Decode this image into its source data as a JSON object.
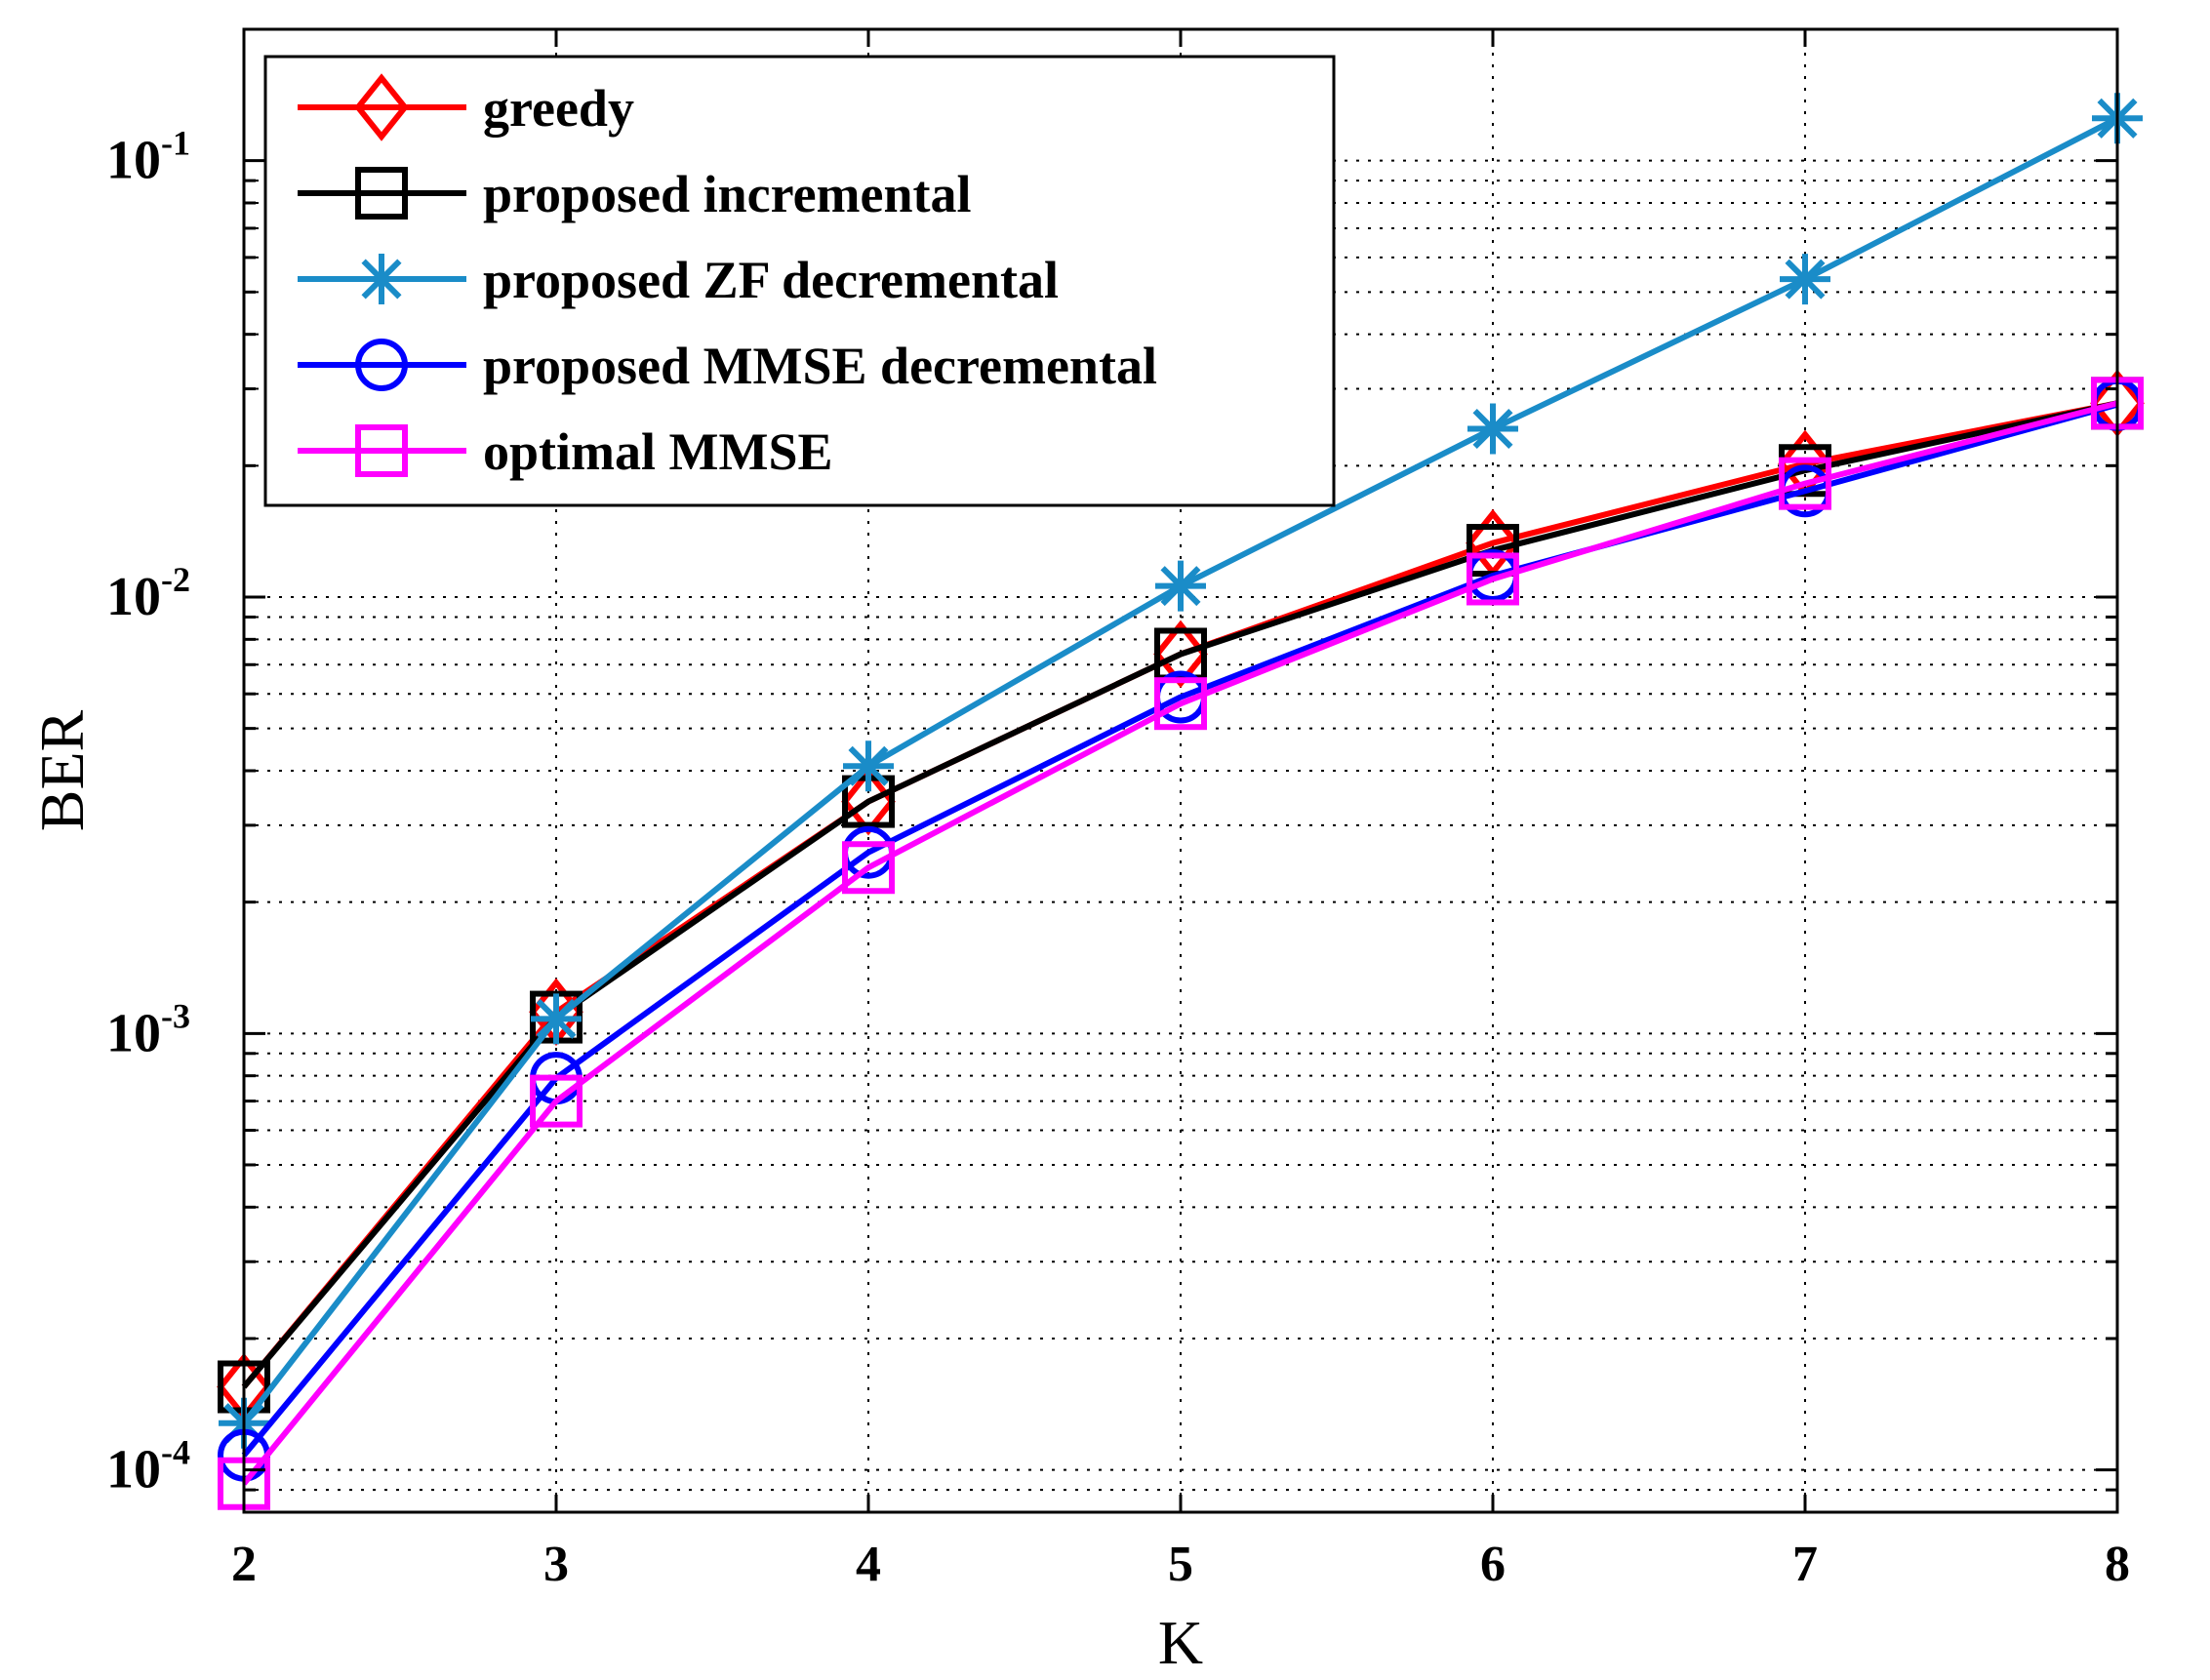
{
  "chart_data": {
    "type": "line",
    "xlabel": "K",
    "ylabel": "BER",
    "xlim": [
      2,
      8
    ],
    "ylim": [
      8e-05,
      0.2
    ],
    "yscale": "log",
    "grid": true,
    "legend_position": "top-left",
    "x": [
      2,
      3,
      4,
      5,
      6,
      7,
      8
    ],
    "x_tick_labels": [
      "2",
      "3",
      "4",
      "5",
      "6",
      "7",
      "8"
    ],
    "y_ticks": [
      {
        "value": 0.1,
        "base": "10",
        "exp": "-1"
      },
      {
        "value": 0.01,
        "base": "10",
        "exp": "-2"
      },
      {
        "value": 0.001,
        "base": "10",
        "exp": "-3"
      },
      {
        "value": 0.0001,
        "base": "10",
        "exp": "-4"
      }
    ],
    "series": [
      {
        "name": "greedy",
        "color": "#ff0000",
        "marker": "diamond",
        "values": [
          0.000155,
          0.00112,
          0.0034,
          0.0074,
          0.0133,
          0.0202,
          0.0278
        ]
      },
      {
        "name": "proposed incremental",
        "color": "#000000",
        "marker": "square",
        "values": [
          0.000155,
          0.00109,
          0.0034,
          0.0074,
          0.0128,
          0.0195,
          0.0278
        ]
      },
      {
        "name": "proposed ZF decremental",
        "color": "#1a8cc8",
        "marker": "asterisk",
        "values": [
          0.000128,
          0.00108,
          0.0041,
          0.0106,
          0.0243,
          0.0535,
          0.125
        ]
      },
      {
        "name": "proposed MMSE decremental",
        "color": "#0000ff",
        "marker": "circle",
        "values": [
          0.000108,
          0.00079,
          0.0026,
          0.0059,
          0.0112,
          0.0175,
          0.0276
        ]
      },
      {
        "name": "optimal MMSE",
        "color": "#ff00ff",
        "marker": "square",
        "values": [
          9.3e-05,
          0.0007,
          0.0024,
          0.0057,
          0.011,
          0.0182,
          0.0278
        ]
      }
    ]
  }
}
